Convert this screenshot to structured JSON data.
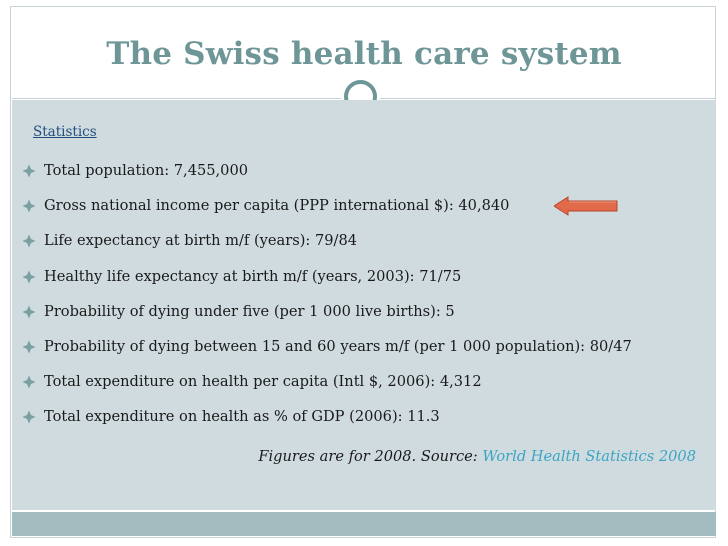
{
  "slide": {
    "title": "The Swiss health care system",
    "section_label": "Statistics",
    "bullets": [
      {
        "text": "Total population: 7,455,000"
      },
      {
        "text": "Gross national income per capita (PPP international $): 40,840"
      },
      {
        "text": "Life expectancy at birth m/f (years): 79/84"
      },
      {
        "text": "Healthy life expectancy at birth m/f (years, 2003): 71/75"
      },
      {
        "text": "Probability of dying under five (per 1 000 live births): 5"
      },
      {
        "text": "Probability of dying between 15 and 60 years m/f (per 1 000 population): 80/47"
      },
      {
        "text": "Total expenditure on health per capita (Intl $, 2006): 4,312"
      },
      {
        "text": "Total expenditure on health as % of GDP (2006): 11.3"
      }
    ],
    "source": {
      "prefix": "Figures are for 2008. Source: ",
      "link_text": "World Health Statistics 2008"
    }
  },
  "colors": {
    "title": "#6e9697",
    "content_background": "#d0dbdf",
    "bottom_band": "#a3bcbf",
    "bullet_diamond": "#7aa0a2",
    "arrow_fill": "#e06a4a",
    "link": "#3aa5c4",
    "section_label": "#1f4e7e"
  },
  "icons": {
    "bullet": "diamond-bullet-icon",
    "pointer": "left-arrow-icon",
    "decor": "ring-icon"
  }
}
